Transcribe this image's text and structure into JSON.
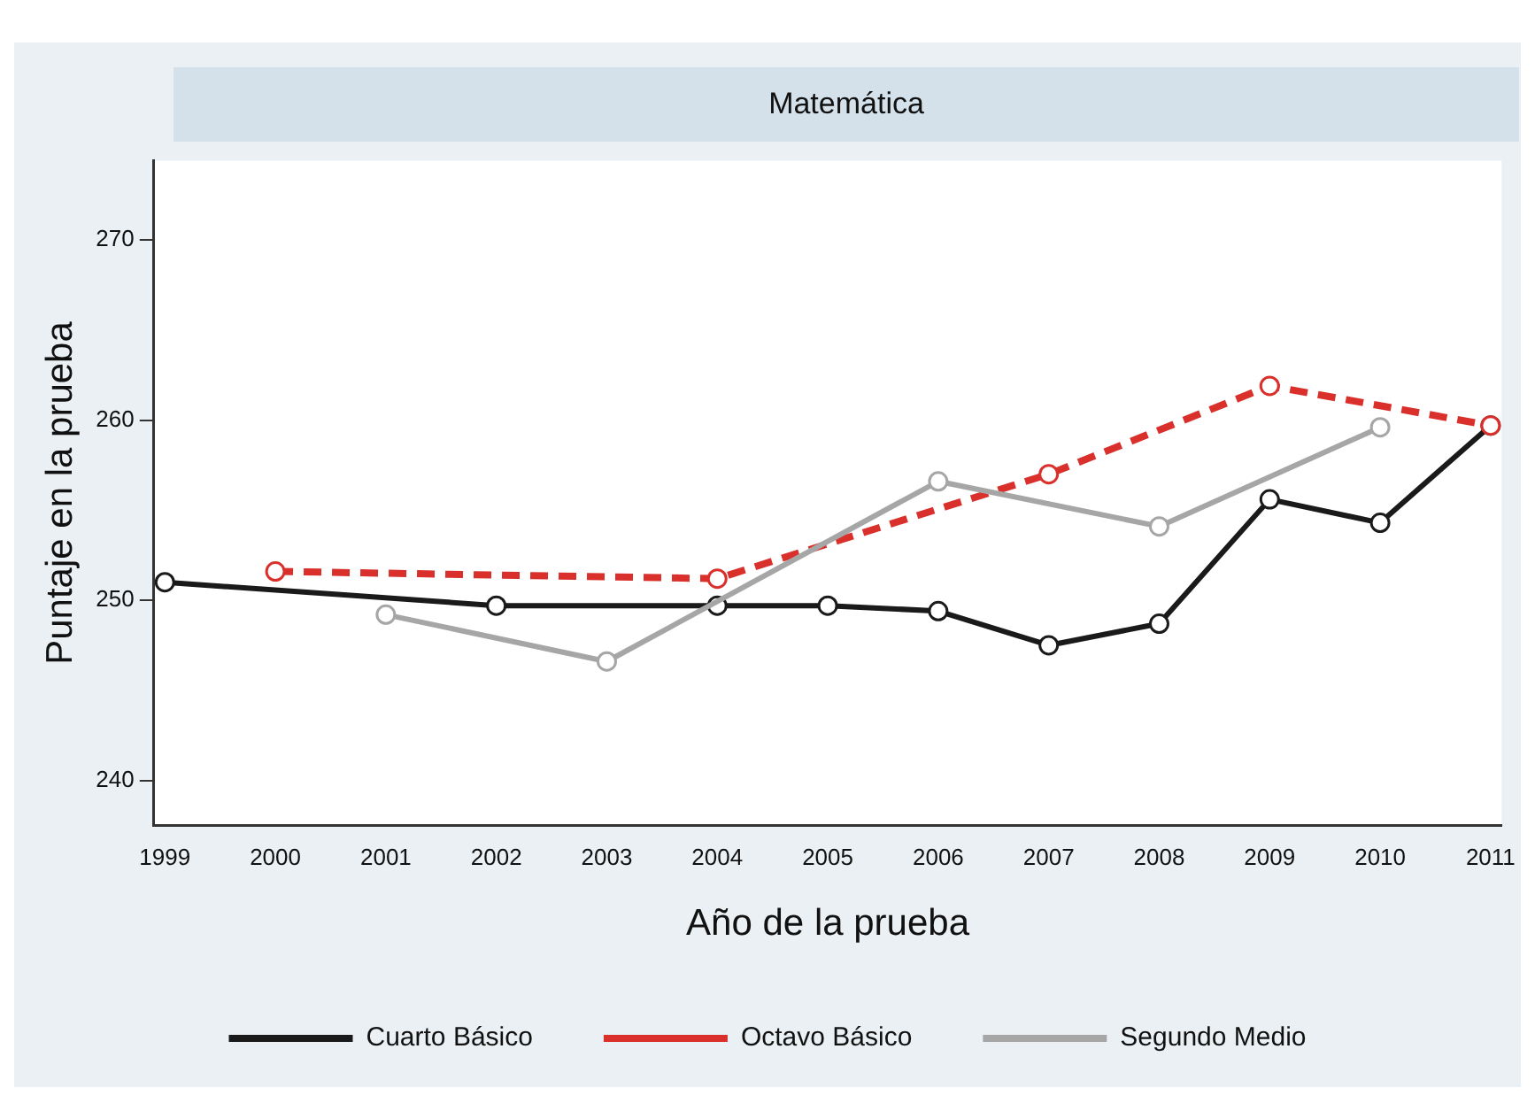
{
  "chart_data": {
    "type": "line",
    "title": "Matemática",
    "xlabel": "Año de la prueba",
    "ylabel": "Puntaje en la prueba",
    "xlim": [
      1998.9,
      2011.1
    ],
    "xticks": [
      1999,
      2000,
      2001,
      2002,
      2003,
      2004,
      2005,
      2006,
      2007,
      2008,
      2009,
      2010,
      2011
    ],
    "ylim": [
      237.5,
      274.4
    ],
    "yticks": [
      240,
      250,
      260,
      270
    ],
    "grid": false,
    "legend": "bottom",
    "marker": "circle",
    "series": [
      {
        "name": "Cuarto Básico",
        "color": "#1a1a1a",
        "line_style": "solid",
        "x": [
          1999,
          2002,
          2004,
          2005,
          2006,
          2007,
          2008,
          2009,
          2010,
          2011
        ],
        "values": [
          251.0,
          249.7,
          249.7,
          249.7,
          249.4,
          247.5,
          248.7,
          255.6,
          254.3,
          259.7
        ]
      },
      {
        "name": "Octavo Básico",
        "color": "#d9302c",
        "line_style": "dashed",
        "x": [
          2000,
          2004,
          2007,
          2009,
          2011
        ],
        "values": [
          251.6,
          251.2,
          257.0,
          261.9,
          259.7
        ]
      },
      {
        "name": "Segundo Medio",
        "color": "#a6a6a6",
        "line_style": "solid",
        "x": [
          2001,
          2003,
          2006,
          2008,
          2010
        ],
        "values": [
          249.2,
          246.6,
          256.6,
          254.1,
          259.6
        ]
      }
    ]
  }
}
